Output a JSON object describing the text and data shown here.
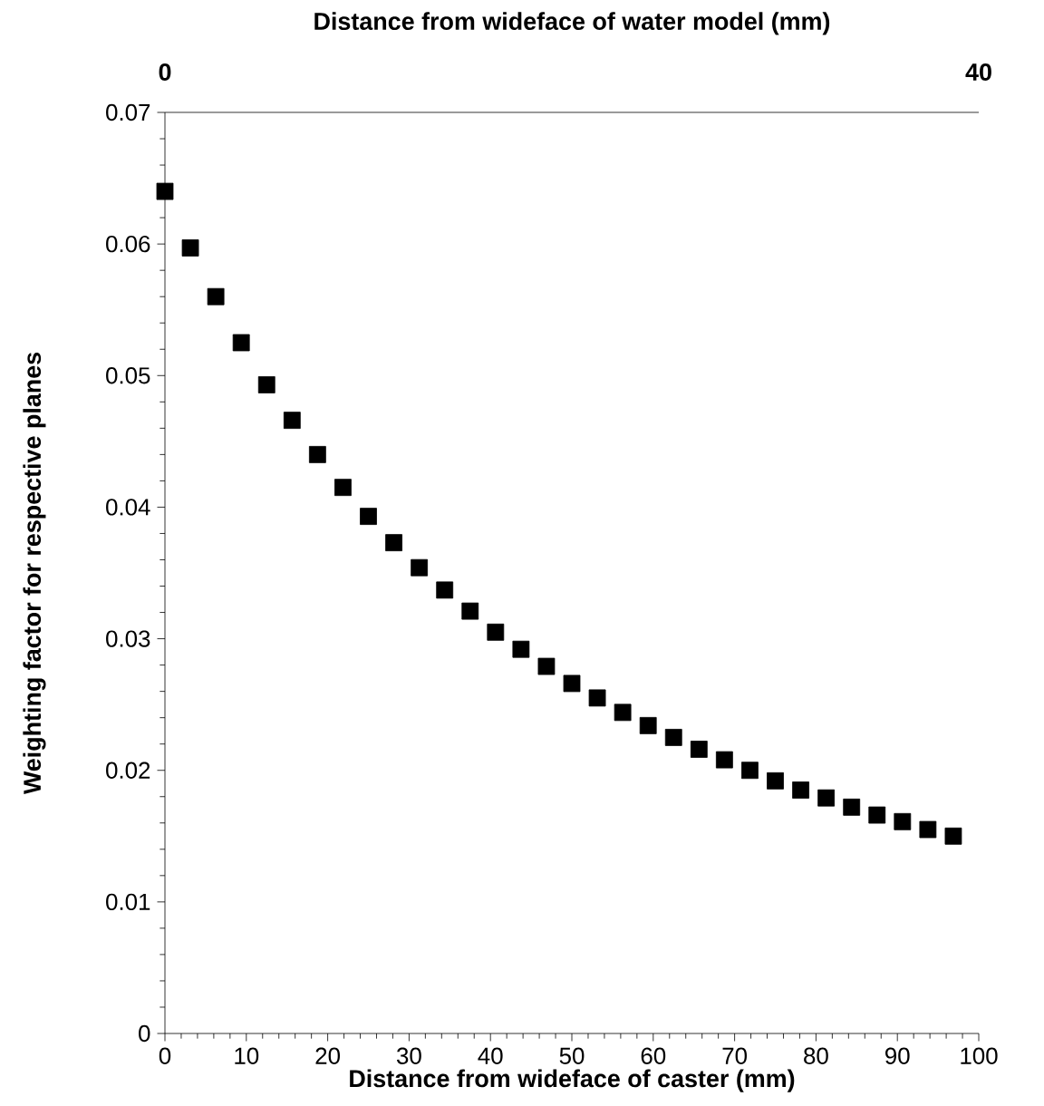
{
  "chart_data": {
    "type": "scatter",
    "xlabel": "Distance from wideface of caster (mm)",
    "ylabel": "Weighting factor for respective planes",
    "x2label": "Distance from wideface of water model (mm)",
    "xlim": [
      0,
      100
    ],
    "xticks": [
      0,
      10,
      20,
      30,
      40,
      50,
      60,
      70,
      80,
      90,
      100
    ],
    "ylim": [
      0,
      0.07
    ],
    "yticks": [
      0,
      0.01,
      0.02,
      0.03,
      0.04,
      0.05,
      0.06,
      0.07
    ],
    "x2lim": [
      0,
      40
    ],
    "x2ticks": [
      0,
      40
    ],
    "marker": "square",
    "series": [
      {
        "color": "#000000",
        "x": [
          0,
          3.125,
          6.25,
          9.375,
          12.5,
          15.625,
          18.75,
          21.875,
          25,
          28.125,
          31.25,
          34.375,
          37.5,
          40.625,
          43.75,
          46.875,
          50,
          53.125,
          56.25,
          59.375,
          62.5,
          65.625,
          68.75,
          71.875,
          75,
          78.125,
          81.25,
          84.375,
          87.5,
          90.625,
          93.75,
          96.875
        ],
        "values": [
          0.064,
          0.0597,
          0.056,
          0.0525,
          0.0493,
          0.0466,
          0.044,
          0.0415,
          0.0393,
          0.0373,
          0.0354,
          0.0337,
          0.0321,
          0.0305,
          0.0292,
          0.0279,
          0.0266,
          0.0255,
          0.0244,
          0.0234,
          0.0225,
          0.0216,
          0.0208,
          0.02,
          0.0192,
          0.0185,
          0.0179,
          0.0172,
          0.0166,
          0.0161,
          0.0155,
          0.015
        ]
      }
    ]
  }
}
